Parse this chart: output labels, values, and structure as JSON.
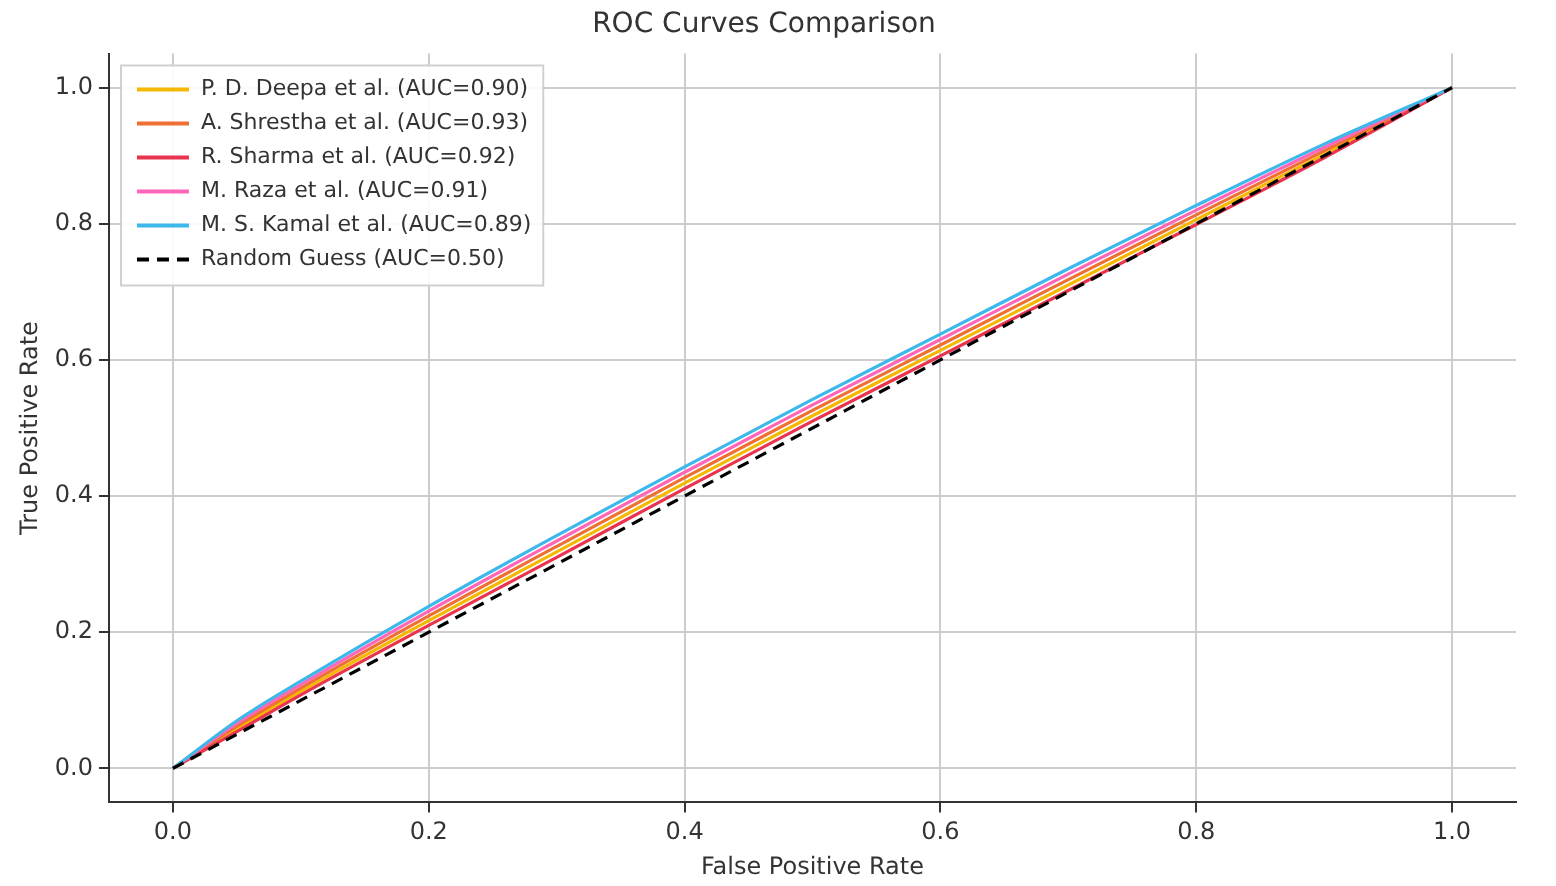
{
  "chart_data": {
    "type": "line",
    "title": "ROC Curves Comparison",
    "xlabel": "False Positive Rate",
    "ylabel": "True Positive Rate",
    "x": [
      0,
      0.05,
      0.1,
      0.2,
      0.3,
      0.4,
      0.5,
      0.6,
      0.7,
      0.8,
      0.9,
      1
    ],
    "series": [
      {
        "name": "P. D. Deepa et al. (AUC=0.90)",
        "color": "#f5b800",
        "values": [
          0,
          0.058,
          0.113,
          0.217,
          0.318,
          0.419,
          0.518,
          0.614,
          0.71,
          0.806,
          0.902,
          1
        ]
      },
      {
        "name": "A. Shrestha et al. (AUC=0.93)",
        "color": "#ee7033",
        "values": [
          0,
          0.062,
          0.118,
          0.224,
          0.326,
          0.427,
          0.526,
          0.622,
          0.718,
          0.813,
          0.907,
          1
        ]
      },
      {
        "name": "R. Sharma et al. (AUC=0.92)",
        "color": "#e8344e",
        "values": [
          0,
          0.054,
          0.108,
          0.21,
          0.31,
          0.411,
          0.51,
          0.606,
          0.702,
          0.799,
          0.897,
          1
        ]
      },
      {
        "name": "M. Raza et al. (AUC=0.91)",
        "color": "#ff66b8",
        "values": [
          0,
          0.066,
          0.123,
          0.231,
          0.334,
          0.435,
          0.534,
          0.63,
          0.726,
          0.82,
          0.912,
          1
        ]
      },
      {
        "name": "M. S. Kamal et al. (AUC=0.89)",
        "color": "#3db8ea",
        "values": [
          0,
          0.07,
          0.128,
          0.238,
          0.342,
          0.443,
          0.542,
          0.638,
          0.734,
          0.827,
          0.917,
          1
        ]
      },
      {
        "name": "Random Guess (AUC=0.50)",
        "color": "#000000",
        "x": [
          0,
          1
        ],
        "values": [
          0,
          1
        ],
        "line_style": "dashed"
      }
    ],
    "xlim": [
      -0.05,
      1.05
    ],
    "ylim": [
      -0.05,
      1.05
    ],
    "xticks": [
      {
        "value": 0,
        "label": "0.0"
      },
      0.2,
      0.4,
      0.6,
      0.8,
      {
        "value": 1,
        "label": "1.0"
      }
    ],
    "yticks": [
      {
        "value": 0,
        "label": "0.0"
      },
      0.2,
      0.4,
      0.6,
      0.8,
      {
        "value": 1,
        "label": "1.0"
      }
    ],
    "grid": true,
    "legend": "top left",
    "marker": "none",
    "line_style": "solid"
  }
}
